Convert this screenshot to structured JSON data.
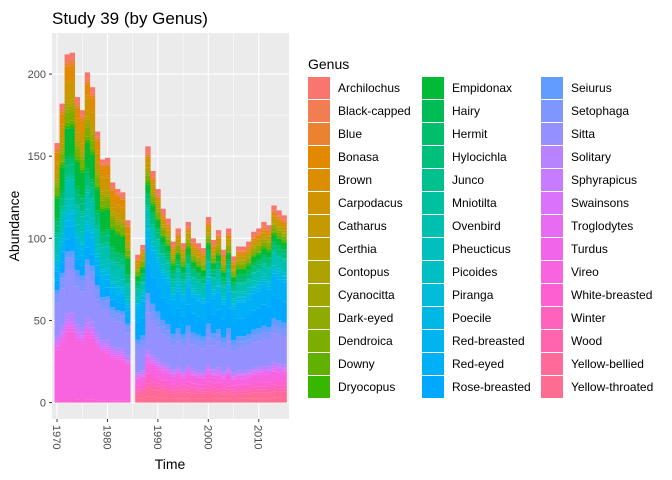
{
  "chart_data": {
    "type": "area",
    "stacked": true,
    "title": "Study 39 (by Genus)",
    "xlabel": "Time",
    "ylabel": "Abundance",
    "xlim": [
      1969,
      2016
    ],
    "ylim": [
      -10,
      225
    ],
    "x_ticks": [
      1970,
      1980,
      1990,
      2000,
      2010
    ],
    "y_ticks": [
      0,
      50,
      100,
      150,
      200
    ],
    "grid": true,
    "legend_title": "Genus",
    "legend_position": "right",
    "years": [
      1970,
      1971,
      1972,
      1973,
      1974,
      1975,
      1976,
      1977,
      1978,
      1979,
      1980,
      1981,
      1982,
      1983,
      1984,
      1986,
      1987,
      1988,
      1989,
      1990,
      1991,
      1992,
      1993,
      1994,
      1995,
      1996,
      1997,
      1998,
      1999,
      2000,
      2001,
      2002,
      2003,
      2004,
      2005,
      2006,
      2007,
      2008,
      2009,
      2010,
      2011,
      2012,
      2013,
      2014,
      2015
    ],
    "totals": [
      158,
      182,
      212,
      213,
      186,
      178,
      201,
      192,
      165,
      148,
      149,
      134,
      130,
      128,
      111,
      90,
      96,
      156,
      141,
      130,
      118,
      112,
      98,
      106,
      97,
      110,
      100,
      97,
      94,
      113,
      99,
      105,
      93,
      106,
      89,
      95,
      95,
      98,
      104,
      106,
      110,
      108,
      120,
      117,
      114
    ],
    "series": [
      {
        "name": "Archilochus",
        "color": "#F8766D"
      },
      {
        "name": "Black-capped",
        "color": "#F27D53"
      },
      {
        "name": "Blue",
        "color": "#EA8331"
      },
      {
        "name": "Bonasa",
        "color": "#E38900"
      },
      {
        "name": "Brown",
        "color": "#DB8E00"
      },
      {
        "name": "Carpodacus",
        "color": "#D09400"
      },
      {
        "name": "Catharus",
        "color": "#C49A00"
      },
      {
        "name": "Certhia",
        "color": "#BB9D00"
      },
      {
        "name": "Contopus",
        "color": "#AEA200"
      },
      {
        "name": "Cyanocitta",
        "color": "#9FA600"
      },
      {
        "name": "Dark-eyed",
        "color": "#8FAA00"
      },
      {
        "name": "Dendroica",
        "color": "#7CAE00"
      },
      {
        "name": "Downy",
        "color": "#61B200"
      },
      {
        "name": "Dryocopus",
        "color": "#39B600"
      },
      {
        "name": "Empidonax",
        "color": "#00BA38"
      },
      {
        "name": "Hairy",
        "color": "#00BC55"
      },
      {
        "name": "Hermit",
        "color": "#00BE6C"
      },
      {
        "name": "Hylocichla",
        "color": "#00BF7D"
      },
      {
        "name": "Junco",
        "color": "#00C08E"
      },
      {
        "name": "Mniotilta",
        "color": "#00C19F"
      },
      {
        "name": "Ovenbird",
        "color": "#00C0AF"
      },
      {
        "name": "Pheucticus",
        "color": "#00BFBE"
      },
      {
        "name": "Picoides",
        "color": "#00BFC4"
      },
      {
        "name": "Piranga",
        "color": "#00BCD8"
      },
      {
        "name": "Poecile",
        "color": "#00B8E5"
      },
      {
        "name": "Red-breasted",
        "color": "#00B4F0"
      },
      {
        "name": "Red-eyed",
        "color": "#00B0F6"
      },
      {
        "name": "Rose-breasted",
        "color": "#00A9FF"
      },
      {
        "name": "Seiurus",
        "color": "#619CFF"
      },
      {
        "name": "Setophaga",
        "color": "#7F96FF"
      },
      {
        "name": "Sitta",
        "color": "#9590FF"
      },
      {
        "name": "Solitary",
        "color": "#B983FF"
      },
      {
        "name": "Sphyrapicus",
        "color": "#C77CFF"
      },
      {
        "name": "Swainsons",
        "color": "#DB72FB"
      },
      {
        "name": "Troglodytes",
        "color": "#E76BF3"
      },
      {
        "name": "Turdus",
        "color": "#F066EA"
      },
      {
        "name": "Vireo",
        "color": "#F863DF"
      },
      {
        "name": "White-breasted",
        "color": "#FD61D1"
      },
      {
        "name": "Winter",
        "color": "#FF62BC"
      },
      {
        "name": "Wood",
        "color": "#FF65AE"
      },
      {
        "name": "Yellow-bellied",
        "color": "#FF6A98"
      },
      {
        "name": "Yellow-throated",
        "color": "#FF6C91"
      }
    ]
  }
}
